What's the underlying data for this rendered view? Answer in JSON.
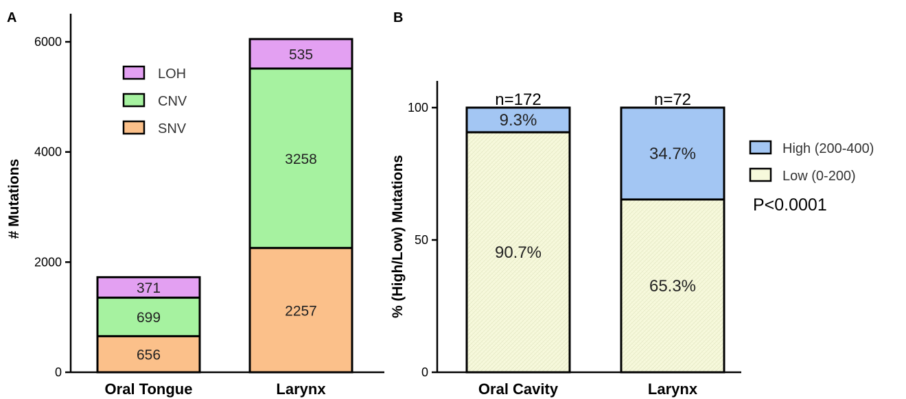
{
  "chart_data": [
    {
      "panel": "A",
      "type": "bar",
      "stacked": true,
      "categories": [
        "Oral Tongue",
        "Larynx"
      ],
      "series": [
        {
          "name": "SNV",
          "values": [
            656,
            2257
          ],
          "color": "#fbc08a"
        },
        {
          "name": "CNV",
          "values": [
            699,
            3258
          ],
          "color": "#a6f2a0"
        },
        {
          "name": "LOH",
          "values": [
            371,
            535
          ],
          "color": "#e3a0f2"
        }
      ],
      "ylabel": "# Mutations",
      "ylim": [
        0,
        6300
      ],
      "yticks": [
        "0",
        "2000",
        "4000",
        "6000"
      ],
      "segment_labels": [
        [
          "656",
          "699",
          "371"
        ],
        [
          "2257",
          "3258",
          "535"
        ]
      ],
      "legend": [
        "LOH",
        "CNV",
        "SNV"
      ],
      "legend_position": "top-left"
    },
    {
      "panel": "B",
      "type": "bar",
      "stacked": true,
      "categories": [
        "Oral Cavity",
        "Larynx"
      ],
      "series": [
        {
          "name": "Low (0-200)",
          "values": [
            90.7,
            65.3
          ],
          "color": "#f7f9dc"
        },
        {
          "name": "High (200-400)",
          "values": [
            9.3,
            34.7
          ],
          "color": "#a3c6f3"
        }
      ],
      "ylabel": "% (High/Low) Mutations",
      "ylim": [
        0,
        110
      ],
      "yticks": [
        "0",
        "50",
        "100"
      ],
      "segment_labels": [
        [
          "90.7%",
          "9.3%"
        ],
        [
          "65.3%",
          "34.7%"
        ]
      ],
      "n_labels": [
        "n=172",
        "n=72"
      ],
      "legend": [
        "High (200-400)",
        "Low (0-200)"
      ],
      "legend_position": "right",
      "annotation": "P<0.0001"
    }
  ]
}
